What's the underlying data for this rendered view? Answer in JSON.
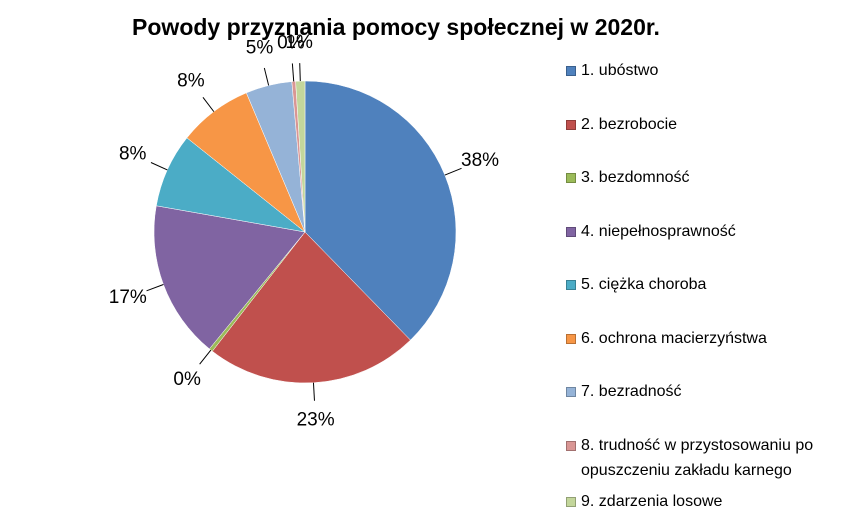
{
  "chart_data": {
    "type": "pie",
    "title": "Powody przyznania pomocy społecznej w 2020r.",
    "categories": [
      "1. ubóstwo",
      "2. bezrobocie",
      "3. bezdomność",
      "4. niepełnosprawność",
      "5. ciężka choroba",
      "6. ochrona macierzyństwa",
      "7. bezradność",
      "8. trudność w przystosowaniu po opuszczeniu zakładu karnego",
      "9. zdarzenia losowe"
    ],
    "values": [
      38,
      23,
      0.4,
      17,
      8,
      8,
      5,
      0.4,
      1
    ],
    "value_labels": [
      "38%",
      "23%",
      "0%",
      "17%",
      "8%",
      "8%",
      "5%",
      "0%",
      "1%"
    ],
    "colors": [
      "#4f81bd",
      "#c0504d",
      "#9bbb59",
      "#8064a2",
      "#4bacc6",
      "#f79646",
      "#95b3d7",
      "#d99694",
      "#c3d69b"
    ],
    "legend": "right"
  }
}
